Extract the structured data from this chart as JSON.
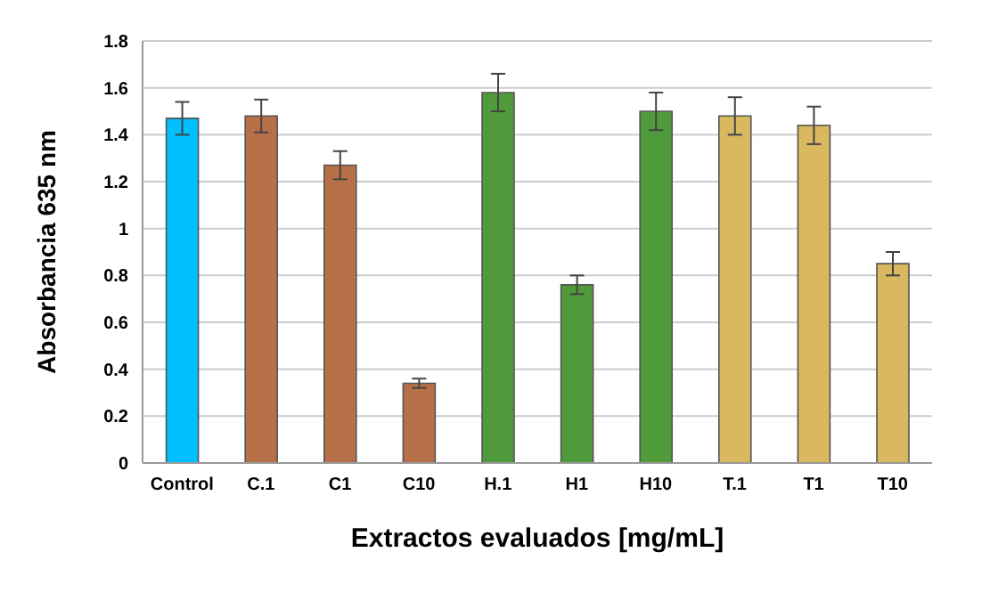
{
  "chart_data": {
    "type": "bar",
    "xlabel": "Extractos evaluados [mg/mL]",
    "ylabel": "Absorbancia 635 nm",
    "categories": [
      "Control",
      "C.1",
      "C1",
      "C10",
      "H.1",
      "H1",
      "H10",
      "T.1",
      "T1",
      "T10"
    ],
    "values": [
      1.47,
      1.48,
      1.27,
      0.34,
      1.58,
      0.76,
      1.5,
      1.48,
      1.44,
      0.85
    ],
    "errors": [
      0.07,
      0.07,
      0.06,
      0.02,
      0.08,
      0.04,
      0.08,
      0.08,
      0.08,
      0.05
    ],
    "colors": [
      "#00bfff",
      "#b87048",
      "#b87048",
      "#b87048",
      "#4f9a3a",
      "#4f9a3a",
      "#4f9a3a",
      "#d9b860",
      "#d9b860",
      "#d9b860"
    ],
    "ylim": [
      0,
      1.8
    ],
    "yticks": [
      0,
      0.2,
      0.4,
      0.6,
      0.8,
      1,
      1.2,
      1.4,
      1.6,
      1.8
    ],
    "grid": "y"
  }
}
